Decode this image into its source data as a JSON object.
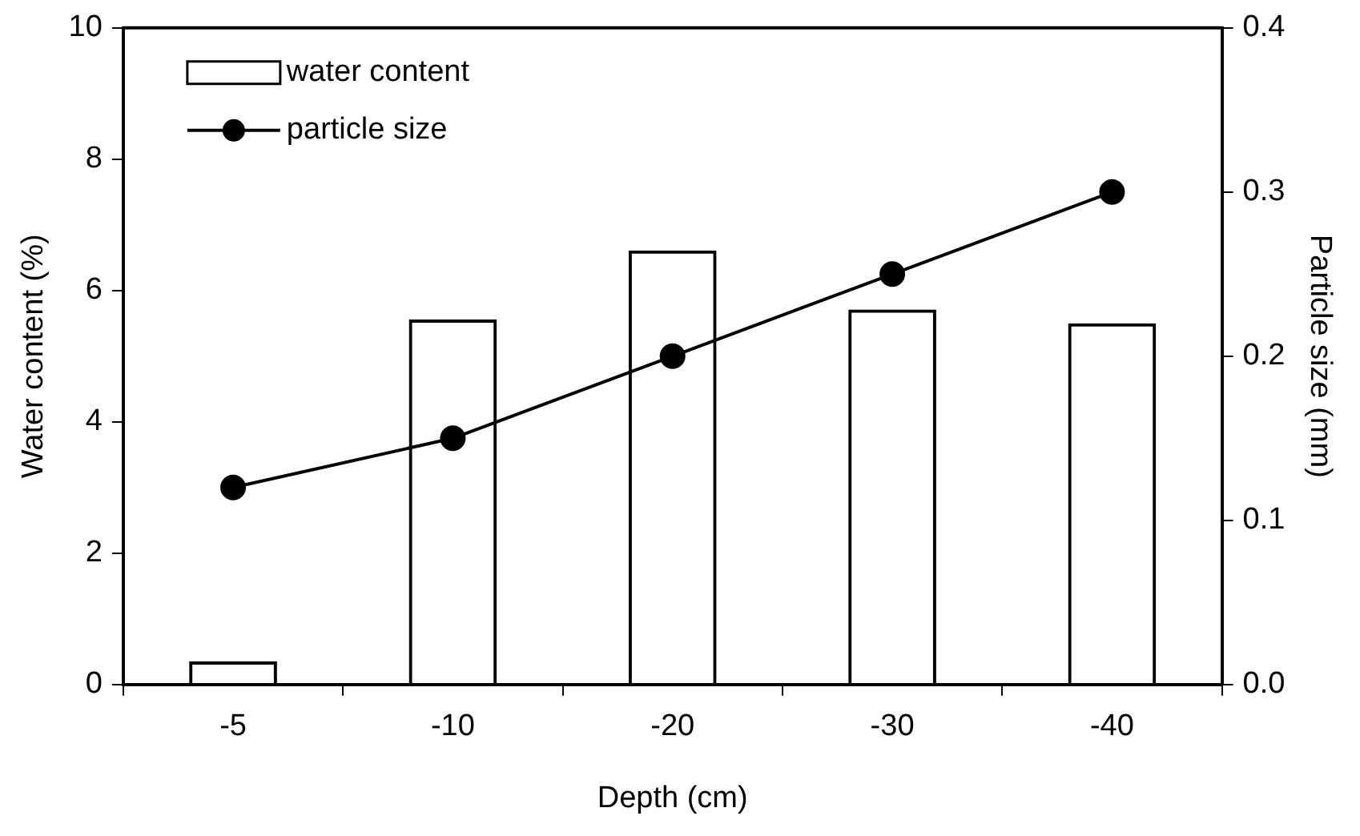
{
  "chart_data": {
    "type": "bar",
    "xlabel": "Depth (cm)",
    "ylabel": "Water content (%)",
    "y2label": "Particle size (mm)",
    "categories": [
      "-5",
      "-10",
      "-20",
      "-30",
      "-40"
    ],
    "series": [
      {
        "name": "water content",
        "color": "#000000",
        "values": [
          0.35,
          5.56,
          6.61,
          5.71,
          5.5
        ]
      },
      {
        "name": "particle size",
        "type": "line",
        "axis": "y2",
        "color": "#000000",
        "marker": "circle",
        "values": [
          0.12,
          0.15,
          0.2,
          0.25,
          0.3
        ]
      }
    ],
    "ylim": [
      0,
      10
    ],
    "yticks": [
      0,
      2,
      4,
      6,
      8,
      10
    ],
    "y2lim": [
      0,
      0.4
    ],
    "y2ticks": [
      {
        "value": 0,
        "label": "0.0"
      },
      0.1,
      0.2,
      0.3,
      0.4
    ],
    "grid": false,
    "legend": "top left"
  }
}
